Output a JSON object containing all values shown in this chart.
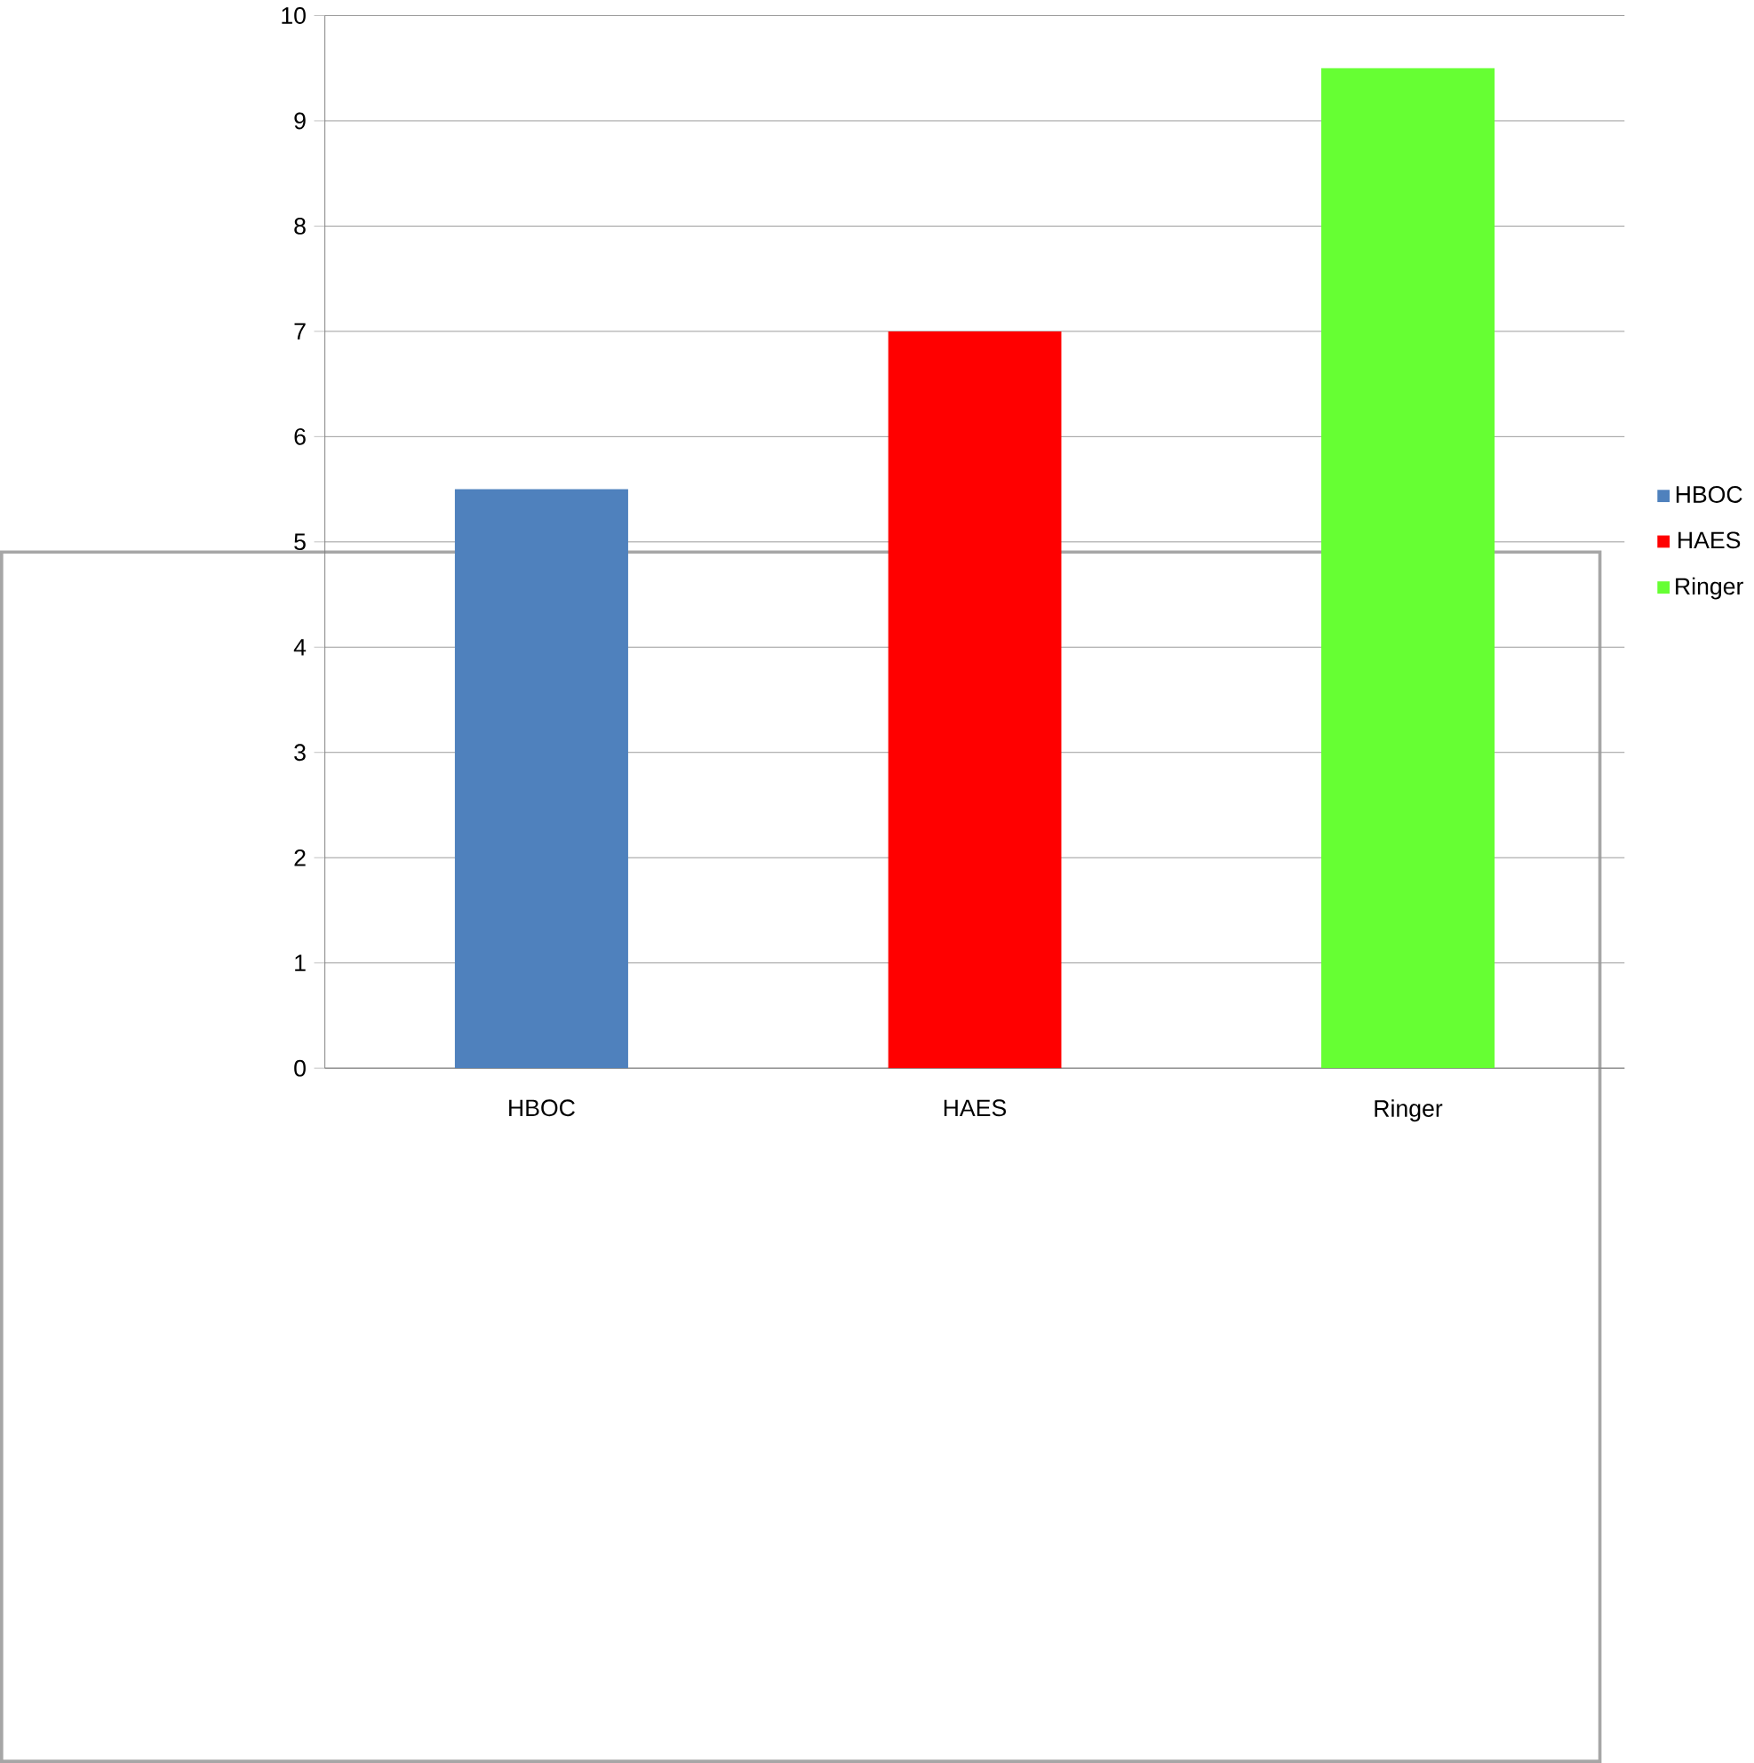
{
  "chart_data": {
    "type": "bar",
    "categories": [
      "HBOC",
      "HAES",
      "Ringer"
    ],
    "series": [
      {
        "name": "HBOC",
        "color": "#4f81bd",
        "values": [
          5.5,
          null,
          null
        ]
      },
      {
        "name": "HAES",
        "color": "#ff0000",
        "values": [
          null,
          7,
          null
        ]
      },
      {
        "name": "Ringer",
        "color": "#66ff33",
        "values": [
          null,
          null,
          9.5
        ]
      }
    ],
    "ylim": [
      0,
      10
    ],
    "yticks": [
      0,
      1,
      2,
      3,
      4,
      5,
      6,
      7,
      8,
      9,
      10
    ],
    "grid": "y",
    "legend": "right"
  }
}
